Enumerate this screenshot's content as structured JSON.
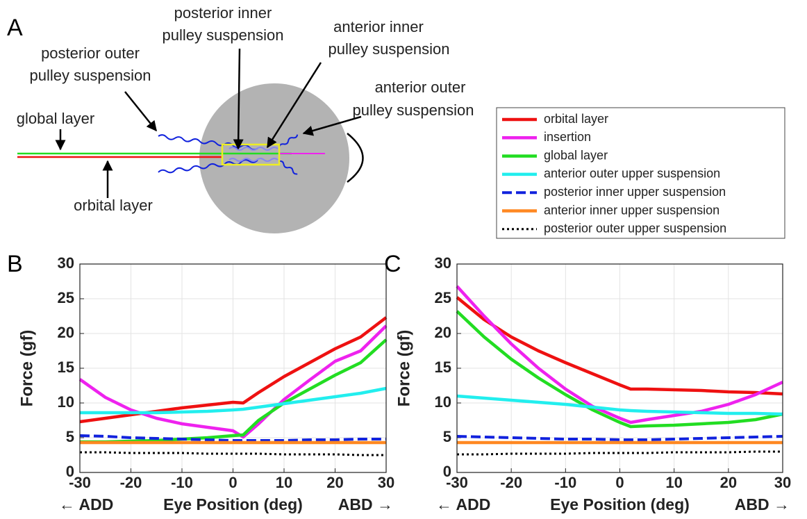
{
  "diagram": {
    "panel": "A",
    "posterior_inner": [
      "posterior inner",
      "pulley suspension"
    ],
    "anterior_inner": [
      "anterior inner",
      "pulley suspension"
    ],
    "posterior_outer": [
      "posterior outer",
      "pulley suspension"
    ],
    "anterior_outer": [
      "anterior outer",
      "pulley suspension"
    ],
    "global_layer": "global layer",
    "orbital_layer": "orbital layer"
  },
  "chart_data": [
    {
      "type": "line",
      "panel": "B",
      "ylabel": "Force (gf)",
      "xlabel": "Eye Position (deg)",
      "x_left_note": "← ADD",
      "x_right_note": "ABD →",
      "x": [
        -30,
        -25,
        -20,
        -15,
        -10,
        -5,
        0,
        2,
        5,
        10,
        15,
        20,
        25,
        30
      ],
      "xlim": [
        -30,
        30
      ],
      "xticks": [
        -30,
        -20,
        -10,
        0,
        10,
        20,
        30
      ],
      "ylim": [
        0,
        30
      ],
      "yticks": [
        0,
        5,
        10,
        15,
        20,
        25,
        30
      ],
      "grid": true,
      "series": [
        {
          "name": "orbital layer",
          "color": "#ee1111",
          "style": "solid",
          "values": [
            7.3,
            7.8,
            8.3,
            8.8,
            9.3,
            9.7,
            10.1,
            10.0,
            11.5,
            13.8,
            15.8,
            17.8,
            19.5,
            22.3
          ]
        },
        {
          "name": "insertion",
          "color": "#ee22ee",
          "style": "solid",
          "values": [
            13.4,
            10.8,
            9.0,
            7.8,
            7.0,
            6.5,
            6.0,
            5.1,
            7.0,
            10.5,
            13.3,
            16.0,
            17.5,
            21.1
          ]
        },
        {
          "name": "global layer",
          "color": "#22dd22",
          "style": "solid",
          "values": [
            4.4,
            4.4,
            4.5,
            4.6,
            4.8,
            5.0,
            5.3,
            5.4,
            7.5,
            10.0,
            12.0,
            14.0,
            15.8,
            19.1
          ]
        },
        {
          "name": "anterior outer upper suspension",
          "color": "#22eeee",
          "style": "solid",
          "values": [
            8.6,
            8.6,
            8.6,
            8.6,
            8.7,
            8.8,
            9.0,
            9.1,
            9.4,
            9.9,
            10.4,
            10.9,
            11.4,
            12.1
          ]
        },
        {
          "name": "posterior inner upper suspension",
          "color": "#1122dd",
          "style": "dashed",
          "values": [
            5.3,
            5.2,
            5.0,
            4.9,
            4.8,
            4.7,
            4.6,
            4.6,
            4.6,
            4.6,
            4.7,
            4.7,
            4.8,
            4.8
          ]
        },
        {
          "name": "anterior inner upper suspension",
          "color": "#ff8822",
          "style": "solid",
          "values": [
            4.3,
            4.3,
            4.3,
            4.3,
            4.3,
            4.3,
            4.3,
            4.3,
            4.3,
            4.3,
            4.3,
            4.3,
            4.3,
            4.3
          ]
        },
        {
          "name": "posterior outer upper suspension",
          "color": "#000000",
          "style": "dotted",
          "values": [
            2.9,
            2.9,
            2.8,
            2.8,
            2.8,
            2.7,
            2.7,
            2.7,
            2.7,
            2.6,
            2.6,
            2.6,
            2.5,
            2.5
          ]
        }
      ]
    },
    {
      "type": "line",
      "panel": "C",
      "ylabel": "Force (gf)",
      "xlabel": "Eye Position (deg)",
      "x_left_note": "← ADD",
      "x_right_note": "ABD →",
      "x": [
        -30,
        -25,
        -20,
        -15,
        -10,
        -5,
        0,
        2,
        5,
        10,
        15,
        20,
        25,
        30
      ],
      "xlim": [
        -30,
        30
      ],
      "xticks": [
        -30,
        -20,
        -10,
        0,
        10,
        20,
        30
      ],
      "ylim": [
        0,
        30
      ],
      "yticks": [
        0,
        5,
        10,
        15,
        20,
        25,
        30
      ],
      "grid": true,
      "series": [
        {
          "name": "orbital layer",
          "color": "#ee1111",
          "style": "solid",
          "values": [
            25.2,
            22.0,
            19.5,
            17.5,
            15.8,
            14.2,
            12.6,
            12.0,
            12.0,
            11.9,
            11.8,
            11.6,
            11.5,
            11.3
          ]
        },
        {
          "name": "insertion",
          "color": "#ee22ee",
          "style": "solid",
          "values": [
            26.8,
            22.5,
            18.5,
            15.0,
            12.0,
            9.5,
            7.8,
            7.2,
            7.6,
            8.2,
            8.8,
            9.8,
            11.2,
            13.0
          ]
        },
        {
          "name": "global layer",
          "color": "#22dd22",
          "style": "solid",
          "values": [
            23.2,
            19.5,
            16.3,
            13.6,
            11.2,
            9.0,
            7.2,
            6.6,
            6.7,
            6.8,
            7.0,
            7.2,
            7.6,
            8.4
          ]
        },
        {
          "name": "anterior outer upper suspension",
          "color": "#22eeee",
          "style": "solid",
          "values": [
            11.0,
            10.7,
            10.4,
            10.1,
            9.8,
            9.4,
            9.0,
            8.9,
            8.8,
            8.7,
            8.6,
            8.5,
            8.5,
            8.4
          ]
        },
        {
          "name": "posterior inner upper suspension",
          "color": "#1122dd",
          "style": "dashed",
          "values": [
            5.2,
            5.1,
            5.0,
            4.9,
            4.8,
            4.8,
            4.7,
            4.7,
            4.7,
            4.8,
            4.9,
            5.0,
            5.1,
            5.2
          ]
        },
        {
          "name": "anterior inner upper suspension",
          "color": "#ff8822",
          "style": "solid",
          "values": [
            4.3,
            4.3,
            4.3,
            4.3,
            4.3,
            4.3,
            4.3,
            4.3,
            4.3,
            4.3,
            4.3,
            4.3,
            4.3,
            4.3
          ]
        },
        {
          "name": "posterior outer upper suspension",
          "color": "#000000",
          "style": "dotted",
          "values": [
            2.6,
            2.6,
            2.7,
            2.7,
            2.7,
            2.8,
            2.8,
            2.8,
            2.8,
            2.9,
            2.9,
            2.9,
            3.0,
            3.0
          ]
        }
      ]
    }
  ]
}
